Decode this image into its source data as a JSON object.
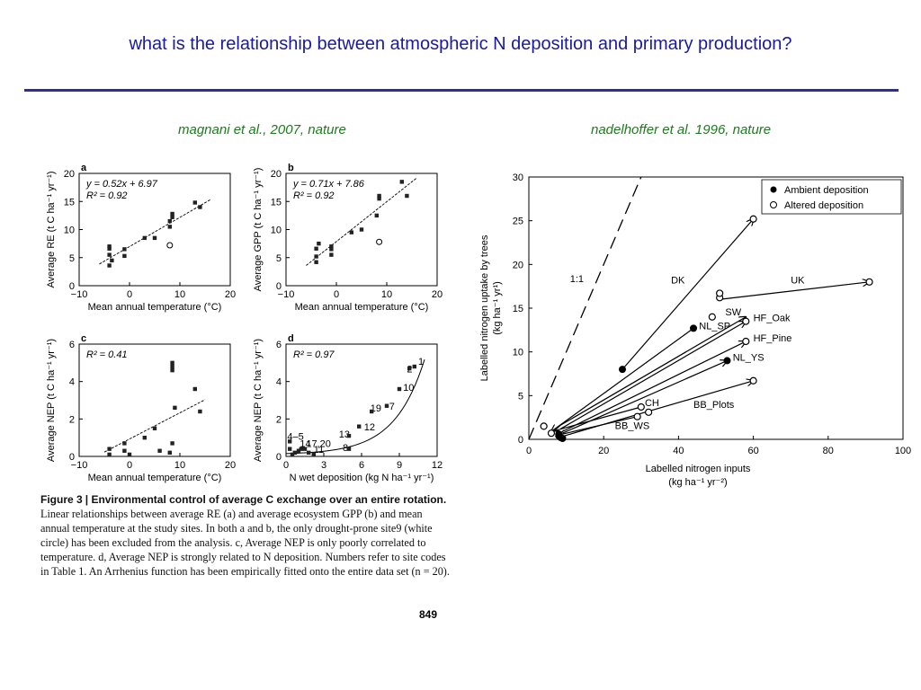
{
  "header": {
    "title": "what is the relationship between atmospheric N deposition and primary production?",
    "cite_left": "magnani et al., 2007, nature",
    "cite_right": "nadelhoffer et al. 1996, nature"
  },
  "colors": {
    "title": "#1a1a9e",
    "rule": "#2e2e99",
    "cite": "#1e7a1e"
  },
  "caption": {
    "fig": "Figure 3",
    "heading": "Environmental control of average C exchange over an entire rotation.",
    "body": "Linear relationships between average RE (a) and average ecosystem GPP (b) and mean annual temperature at the study sites. In both a and b, the only drought-prone site9 (white circle) has been excluded from the analysis. c, Average NEP is only poorly correlated to temperature. d, Average NEP is strongly related to N deposition. Numbers refer to site codes in Table 1. An Arrhenius function has been empirically fitted onto the entire data set (n = 20).",
    "page": "849"
  },
  "chart_data": [
    {
      "panel": "a",
      "type": "scatter",
      "xlabel": "Mean annual temperature (°C)",
      "ylabel": "Average RE (t C ha⁻¹ yr⁻¹)",
      "xlim": [
        -10,
        20
      ],
      "ylim": [
        0,
        20
      ],
      "xticks": [
        -10,
        0,
        10,
        20
      ],
      "yticks": [
        0,
        5,
        10,
        15,
        20
      ],
      "equation": "y = 0.52x + 6.97",
      "r2": "R² = 0.92",
      "fit": {
        "slope": 0.52,
        "intercept": 6.97,
        "x": [
          -6,
          16
        ]
      },
      "points": [
        [
          -4,
          3.6
        ],
        [
          -4,
          5.5
        ],
        [
          -4,
          6.6
        ],
        [
          -4,
          7
        ],
        [
          -3.5,
          4.5
        ],
        [
          -1,
          6.5
        ],
        [
          -1,
          5.3
        ],
        [
          3,
          8.5
        ],
        [
          5,
          8.5
        ],
        [
          8,
          10.5
        ],
        [
          8,
          11.5
        ],
        [
          8.5,
          12.2
        ],
        [
          8.5,
          12.8
        ],
        [
          13,
          14.8
        ],
        [
          14,
          14
        ]
      ],
      "open_points": [
        [
          8,
          7.2
        ]
      ]
    },
    {
      "panel": "b",
      "type": "scatter",
      "xlabel": "Mean annual temperature (°C)",
      "ylabel": "Average GPP (t C ha⁻¹ yr⁻¹)",
      "xlim": [
        -10,
        20
      ],
      "ylim": [
        0,
        20
      ],
      "xticks": [
        -10,
        0,
        10,
        20
      ],
      "yticks": [
        0,
        5,
        10,
        15,
        20
      ],
      "equation": "y = 0.71x + 7.86",
      "r2": "R² = 0.92",
      "fit": {
        "slope": 0.71,
        "intercept": 7.86,
        "x": [
          -6,
          16
        ]
      },
      "points": [
        [
          -4,
          4.2
        ],
        [
          -4,
          5.2
        ],
        [
          -4,
          6.6
        ],
        [
          -3.5,
          7.5
        ],
        [
          -1,
          7
        ],
        [
          -1,
          6.5
        ],
        [
          -1,
          5.5
        ],
        [
          3,
          9.5
        ],
        [
          5,
          10
        ],
        [
          8,
          12.5
        ],
        [
          8.5,
          15.5
        ],
        [
          8.5,
          16
        ],
        [
          13,
          18.5
        ],
        [
          14,
          16
        ]
      ],
      "open_points": [
        [
          8.5,
          7.8
        ]
      ]
    },
    {
      "panel": "c",
      "type": "scatter",
      "xlabel": "Mean annual temperature (°C)",
      "ylabel": "Average NEP (t C ha⁻¹ yr⁻¹)",
      "xlim": [
        -10,
        20
      ],
      "ylim": [
        0,
        6
      ],
      "xticks": [
        -10,
        0,
        10,
        20
      ],
      "yticks": [
        0,
        2,
        4,
        6
      ],
      "r2": "R² = 0.41",
      "fit": {
        "slope": 0.14,
        "intercept": 0.93,
        "x": [
          -5,
          15
        ]
      },
      "points": [
        [
          -4,
          0.4
        ],
        [
          -4,
          0.1
        ],
        [
          -1,
          0.7
        ],
        [
          -1,
          0.3
        ],
        [
          0,
          0.1
        ],
        [
          3,
          1
        ],
        [
          5,
          1.5
        ],
        [
          6,
          0.3
        ],
        [
          8,
          0.2
        ],
        [
          8.5,
          0.7
        ],
        [
          8.5,
          4.8
        ],
        [
          8.5,
          5
        ],
        [
          8.5,
          4.6
        ],
        [
          9,
          2.6
        ],
        [
          13,
          3.6
        ],
        [
          14,
          2.4
        ]
      ],
      "open_points": []
    },
    {
      "panel": "d",
      "type": "scatter",
      "xlabel": "N wet deposition (kg N ha⁻¹ yr⁻¹)",
      "ylabel": "Average NEP (t C ha⁻¹ yr⁻¹)",
      "xlim": [
        0,
        12
      ],
      "ylim": [
        0,
        6
      ],
      "xticks": [
        0,
        3,
        6,
        9,
        12
      ],
      "yticks": [
        0,
        2,
        4,
        6
      ],
      "r2": "R² = 0.97",
      "points": [
        [
          0.3,
          0.8
        ],
        [
          0.3,
          0.4
        ],
        [
          0.5,
          0.1
        ],
        [
          0.7,
          0.2
        ],
        [
          1,
          0.3
        ],
        [
          1.2,
          0.4
        ],
        [
          1.5,
          0.4
        ],
        [
          1.8,
          0.2
        ],
        [
          2.2,
          0.1
        ],
        [
          5,
          0.4
        ],
        [
          5,
          1.1
        ],
        [
          5.8,
          1.6
        ],
        [
          6.8,
          2.4
        ],
        [
          8,
          2.7
        ],
        [
          9,
          3.6
        ],
        [
          9.8,
          4.7
        ],
        [
          10.2,
          4.8
        ]
      ],
      "site_labels": [
        {
          "text": "1",
          "x": 10.5,
          "y": 4.9
        },
        {
          "text": "2",
          "x": 9.6,
          "y": 4.5
        },
        {
          "text": "10",
          "x": 9.3,
          "y": 3.5
        },
        {
          "text": "7",
          "x": 8.2,
          "y": 2.5
        },
        {
          "text": "19",
          "x": 6.7,
          "y": 2.4
        },
        {
          "text": "12",
          "x": 6.2,
          "y": 1.4
        },
        {
          "text": "13",
          "x": 4.2,
          "y": 1.0
        },
        {
          "text": "8",
          "x": 4.5,
          "y": 0.3
        },
        {
          "text": "4–5",
          "x": 0.1,
          "y": 0.9
        },
        {
          "text": "17,20",
          "x": 1.6,
          "y": 0.5
        },
        {
          "text": "11",
          "x": 2.2,
          "y": 0.2
        },
        {
          "text": "14",
          "x": 1.1,
          "y": 0.5
        }
      ]
    },
    {
      "panel": "nadelhoffer",
      "type": "scatter",
      "xlabel": "Labelled nitrogen inputs",
      "xlabel2": "(kg ha⁻¹ yr⁻²)",
      "ylabel": "Labelled nitrogen uptake by trees",
      "ylabel2": "(kg ha⁻¹ yr¹)",
      "xlim": [
        0,
        100
      ],
      "ylim": [
        0,
        30
      ],
      "xticks": [
        0,
        20,
        40,
        60,
        80,
        100
      ],
      "yticks": [
        0,
        5,
        10,
        15,
        20,
        25,
        30
      ],
      "legend": {
        "position": "top-right",
        "entries": [
          "Ambient deposition",
          "Altered deposition"
        ]
      },
      "one_to_one_label": "1:1",
      "ambient": [
        [
          25,
          8
        ],
        [
          44,
          12.7
        ],
        [
          53,
          9
        ],
        [
          8,
          0.4
        ],
        [
          8.5,
          0.2
        ],
        [
          9,
          0.1
        ],
        [
          8,
          0.6
        ]
      ],
      "altered": [
        [
          4,
          1.5
        ],
        [
          6,
          0.7
        ],
        [
          60,
          25.2
        ],
        [
          91,
          18
        ],
        [
          51,
          16.2
        ],
        [
          51,
          16.7
        ],
        [
          49,
          14
        ],
        [
          58,
          13.5
        ],
        [
          58,
          11.2
        ],
        [
          60,
          6.7
        ],
        [
          30,
          3.7
        ],
        [
          32,
          3.1
        ],
        [
          29,
          2.6
        ]
      ],
      "arrows": [
        {
          "label": "DK",
          "from": [
            25,
            8
          ],
          "to": [
            60,
            25.2
          ],
          "lx": 38,
          "ly": 17.8
        },
        {
          "label": "UK",
          "from": [
            51,
            16
          ],
          "to": [
            91,
            18
          ],
          "lx": 70,
          "ly": 17.8
        },
        {
          "label": "SW",
          "from": [
            8,
            1.5
          ],
          "to": [
            58,
            14
          ],
          "lx": 52.5,
          "ly": 14.2
        },
        {
          "label": "HF_Oak",
          "from": [
            8.5,
            1.2
          ],
          "to": [
            58,
            13.5
          ],
          "lx": 60,
          "ly": 13.5
        },
        {
          "label": "HF_Pine",
          "from": [
            9,
            0.9
          ],
          "to": [
            58,
            11.2
          ],
          "lx": 60,
          "ly": 11.2
        },
        {
          "label": "NL_YS",
          "from": [
            9,
            0.7
          ],
          "to": [
            53,
            9
          ],
          "lx": 54.5,
          "ly": 9
        },
        {
          "label": "BB_Plots",
          "from": [
            9.5,
            0.4
          ],
          "to": [
            60,
            6.7
          ],
          "lx": 44,
          "ly": 3.6
        },
        {
          "label": "NL_SP",
          "from": [
            44,
            12.7
          ],
          "to": [
            6,
            0.9
          ],
          "lx": 45.5,
          "ly": 12.6
        },
        {
          "label": "CH",
          "from": [
            30,
            3.7
          ],
          "to": [
            7,
            1
          ],
          "lx": 31,
          "ly": 3.8
        },
        {
          "label": "BB_WS",
          "from": [
            29,
            2.6
          ],
          "to": [
            8,
            0.5
          ],
          "lx": 23,
          "ly": 1.2
        }
      ]
    }
  ]
}
